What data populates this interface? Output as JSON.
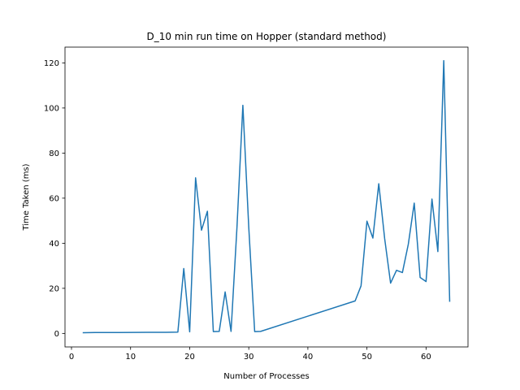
{
  "chart_data": {
    "type": "line",
    "title": "D_10 min run time on Hopper (standard method)",
    "xlabel": "Number of Processes",
    "ylabel": "Time Taken (ms)",
    "xlim": [
      -1.1,
      67.1
    ],
    "ylim": [
      -6.0,
      127.0
    ],
    "xticks": [
      0,
      10,
      20,
      30,
      40,
      50,
      60
    ],
    "yticks": [
      0,
      20,
      40,
      60,
      80,
      100,
      120
    ],
    "grid": false,
    "legend": "none",
    "series": [
      {
        "color": "#1f77b4",
        "x": [
          2,
          4,
          8,
          13,
          16,
          18,
          19,
          20,
          21,
          22,
          23,
          24,
          25,
          26,
          27,
          28,
          29,
          30,
          31,
          32,
          48,
          49,
          50,
          51,
          52,
          53,
          54,
          55,
          56,
          57,
          58,
          59,
          60,
          61,
          62,
          63,
          64
        ],
        "y": [
          0.3,
          0.4,
          0.4,
          0.5,
          0.5,
          0.6,
          28.8,
          0.7,
          69.0,
          45.8,
          54.2,
          0.8,
          0.9,
          18.4,
          0.9,
          47.0,
          101.2,
          47.0,
          0.8,
          0.9,
          14.4,
          21.1,
          49.8,
          42.3,
          66.4,
          42.0,
          22.3,
          28.0,
          27.0,
          39.6,
          57.8,
          24.8,
          23.0,
          59.6,
          36.3,
          121.0,
          14.3
        ]
      }
    ]
  }
}
